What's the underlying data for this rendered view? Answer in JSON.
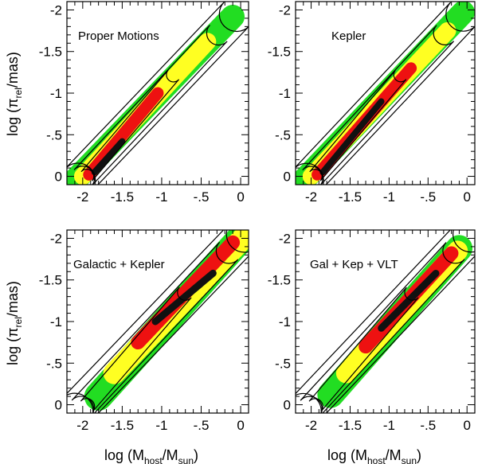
{
  "colors": {
    "black": "#111111",
    "red": "#ee1111",
    "yellow": "#ffff22",
    "green": "#22dd22",
    "contour": "#000000"
  },
  "labels": {
    "ylabel_prefix": "log (π",
    "ylabel_sub": "rel",
    "ylabel_suffix": "/mas)",
    "xlabel_prefix": "log (M",
    "xlabel_sub1": "host",
    "xlabel_mid": "/M",
    "xlabel_sub2": "sun",
    "xlabel_suffix": ")"
  },
  "chart_data": [
    {
      "type": "scatter",
      "title": "Proper Motions",
      "xlim": [
        -2.2,
        0.1
      ],
      "ylim": [
        0.1,
        -2.1
      ],
      "xticks": [
        "-2",
        "-1.5",
        "-1",
        "-.5",
        "0"
      ],
      "yticks": [
        "-2",
        "-1.5",
        "-1",
        "-.5",
        "0"
      ],
      "xtick_values": [
        -2,
        -1.5,
        -1,
        -0.5,
        0
      ],
      "ytick_values": [
        -2,
        -1.5,
        -1,
        -0.5,
        0
      ],
      "show_xticklabels": true,
      "show_yticklabels": true,
      "regions": [
        {
          "level": "green",
          "axis": [
            [
              -2.08,
              0.03
            ],
            [
              -0.1,
              -1.92
            ]
          ],
          "width": 0.3
        },
        {
          "level": "yellow",
          "axis": [
            [
              -2.0,
              0.0
            ],
            [
              -0.42,
              -1.62
            ]
          ],
          "width": 0.22
        },
        {
          "level": "red",
          "axis": [
            [
              -1.92,
              -0.02
            ],
            [
              -1.05,
              -1.0
            ]
          ],
          "width": 0.15
        },
        {
          "level": "black",
          "axis": [
            [
              -1.85,
              -0.05
            ],
            [
              -1.5,
              -0.42
            ]
          ],
          "width": 0.08
        }
      ],
      "contours": [
        {
          "axis": [
            [
              -2.06,
              0.05
            ],
            [
              -0.05,
              -1.95
            ]
          ],
          "width": 0.44
        },
        {
          "axis": [
            [
              -2.0,
              0.02
            ],
            [
              -0.28,
              -1.72
            ]
          ],
          "width": 0.3
        },
        {
          "axis": [
            [
              -1.95,
              0.0
            ],
            [
              -0.85,
              -1.22
            ]
          ],
          "width": 0.18
        }
      ]
    },
    {
      "type": "scatter",
      "title": "Kepler",
      "xlim": [
        -2.2,
        0.1
      ],
      "ylim": [
        0.1,
        -2.1
      ],
      "xticks": [
        "-2",
        "-1.5",
        "-1",
        "-.5",
        "0"
      ],
      "yticks": [
        "-2",
        "-1.5",
        "-1",
        "-.5",
        "0"
      ],
      "xtick_values": [
        -2,
        -1.5,
        -1,
        -0.5,
        0
      ],
      "ytick_values": [
        -2,
        -1.5,
        -1,
        -0.5,
        0
      ],
      "show_xticklabels": true,
      "show_yticklabels": true,
      "regions": [
        {
          "level": "green",
          "axis": [
            [
              -2.08,
              0.03
            ],
            [
              -0.05,
              -1.97
            ]
          ],
          "width": 0.3
        },
        {
          "level": "yellow",
          "axis": [
            [
              -2.0,
              0.0
            ],
            [
              -0.25,
              -1.75
            ]
          ],
          "width": 0.22
        },
        {
          "level": "red",
          "axis": [
            [
              -1.92,
              -0.02
            ],
            [
              -0.72,
              -1.3
            ]
          ],
          "width": 0.15
        },
        {
          "level": "black",
          "axis": [
            [
              -1.85,
              -0.05
            ],
            [
              -1.1,
              -0.9
            ]
          ],
          "width": 0.08
        }
      ],
      "contours": [
        {
          "axis": [
            [
              -2.06,
              0.05
            ],
            [
              -0.05,
              -1.95
            ]
          ],
          "width": 0.44
        },
        {
          "axis": [
            [
              -2.0,
              0.02
            ],
            [
              -0.28,
              -1.72
            ]
          ],
          "width": 0.3
        },
        {
          "axis": [
            [
              -1.95,
              0.0
            ],
            [
              -0.85,
              -1.22
            ]
          ],
          "width": 0.18
        }
      ]
    },
    {
      "type": "scatter",
      "title": "Galactic + Kepler",
      "xlim": [
        -2.2,
        0.1
      ],
      "ylim": [
        0.1,
        -2.1
      ],
      "xticks": [
        "-2",
        "-1.5",
        "-1",
        "-.5",
        "0"
      ],
      "yticks": [
        "-2",
        "-1.5",
        "-1",
        "-.5",
        "0"
      ],
      "xtick_values": [
        -2,
        -1.5,
        -1,
        -0.5,
        0
      ],
      "ytick_values": [
        -2,
        -1.5,
        -1,
        -0.5,
        0
      ],
      "show_xticklabels": true,
      "show_yticklabels": true,
      "regions": [
        {
          "level": "green",
          "axis": [
            [
              -1.8,
              -0.1
            ],
            [
              0.05,
              -2.05
            ]
          ],
          "width": 0.36
        },
        {
          "level": "yellow",
          "axis": [
            [
              -1.6,
              -0.38
            ],
            [
              0.05,
              -2.02
            ]
          ],
          "width": 0.28
        },
        {
          "level": "red",
          "axis": [
            [
              -1.3,
              -0.75
            ],
            [
              -0.1,
              -1.95
            ]
          ],
          "width": 0.18
        },
        {
          "level": "black",
          "axis": [
            [
              -1.08,
              -1.0
            ],
            [
              -0.35,
              -1.58
            ]
          ],
          "width": 0.09
        }
      ],
      "contours": [
        {
          "axis": [
            [
              -2.1,
              0.08
            ],
            [
              0.05,
              -2.05
            ]
          ],
          "width": 0.46
        },
        {
          "axis": [
            [
              -2.02,
              0.05
            ],
            [
              -0.15,
              -1.85
            ]
          ],
          "width": 0.32
        },
        {
          "axis": [
            [
              -1.95,
              0.02
            ],
            [
              -0.7,
              -1.35
            ]
          ],
          "width": 0.2
        }
      ]
    },
    {
      "type": "scatter",
      "title": "Gal + Kep + VLT",
      "xlim": [
        -2.2,
        0.1
      ],
      "ylim": [
        0.1,
        -2.1
      ],
      "xticks": [
        "-2",
        "-1.5",
        "-1",
        "-.5",
        "0"
      ],
      "yticks": [
        "-2",
        "-1.5",
        "-1",
        "-.5",
        "0"
      ],
      "xtick_values": [
        -2,
        -1.5,
        -1,
        -0.5,
        0
      ],
      "ytick_values": [
        -2,
        -1.5,
        -1,
        -0.5,
        0
      ],
      "show_xticklabels": true,
      "show_yticklabels": true,
      "regions": [
        {
          "level": "green",
          "axis": [
            [
              -1.75,
              -0.12
            ],
            [
              -0.1,
              -1.88
            ]
          ],
          "width": 0.34
        },
        {
          "level": "yellow",
          "axis": [
            [
              -1.55,
              -0.38
            ],
            [
              -0.12,
              -1.85
            ]
          ],
          "width": 0.26
        },
        {
          "level": "red",
          "axis": [
            [
              -1.3,
              -0.7
            ],
            [
              -0.2,
              -1.82
            ]
          ],
          "width": 0.18
        },
        {
          "level": "black",
          "axis": [
            [
              -1.1,
              -0.92
            ],
            [
              -0.4,
              -1.58
            ]
          ],
          "width": 0.09
        }
      ],
      "contours": [
        {
          "axis": [
            [
              -2.1,
              0.08
            ],
            [
              0.05,
              -2.05
            ]
          ],
          "width": 0.46
        },
        {
          "axis": [
            [
              -2.02,
              0.05
            ],
            [
              -0.15,
              -1.85
            ]
          ],
          "width": 0.32
        },
        {
          "axis": [
            [
              -1.95,
              0.02
            ],
            [
              -0.7,
              -1.35
            ]
          ],
          "width": 0.2
        }
      ]
    }
  ]
}
